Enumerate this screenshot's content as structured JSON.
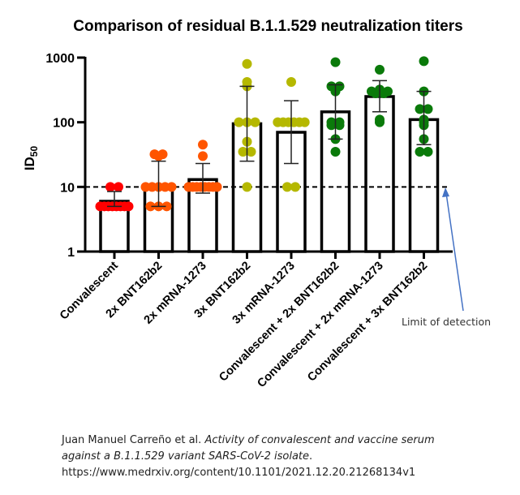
{
  "chart_data": {
    "type": "bar",
    "title": "Comparison of residual B.1.1.529 neutralization titers",
    "xlabel": "",
    "ylabel": "ID",
    "ylabel_subscript": "50",
    "yscale": "log",
    "ylim": [
      1,
      1000
    ],
    "yticks": [
      {
        "value": 1,
        "label": "1"
      },
      {
        "value": 10,
        "label": "10"
      },
      {
        "value": 100,
        "label": "100"
      },
      {
        "value": 1000,
        "label": "1000"
      }
    ],
    "grid": false,
    "reference_line": {
      "value": 10,
      "style": "dashed",
      "label": "Limit of detection"
    },
    "categories": [
      "Convalescent",
      "2x BNT162b2",
      "2x mRNA-1273",
      "3x BNT162b2",
      "3x mRNA-1273",
      "Convalescent + 2x BNT162b2",
      "Convalescent + 2x mRNA-1273",
      "Convalescent + 3x BNT162b2"
    ],
    "colors": [
      "#ff0000",
      "#ff5500",
      "#ff5500",
      "#b5b800",
      "#b5b800",
      "#0a7a0a",
      "#0a7a0a",
      "#0a7a0a"
    ],
    "values": [
      6,
      10.5,
      13,
      95,
      70,
      145,
      250,
      110
    ],
    "error_bars": [
      {
        "low": 5,
        "high": 8.5
      },
      {
        "low": 5,
        "high": 25
      },
      {
        "low": 8,
        "high": 23
      },
      {
        "low": 25,
        "high": 360
      },
      {
        "low": 23,
        "high": 215
      },
      {
        "low": 55,
        "high": 380
      },
      {
        "low": 145,
        "high": 440
      },
      {
        "low": 45,
        "high": 300
      }
    ],
    "points": [
      [
        5,
        5,
        5,
        5,
        5,
        5,
        5,
        5,
        10,
        10
      ],
      [
        32,
        32,
        30,
        10,
        10,
        10,
        10,
        10,
        5,
        5,
        5
      ],
      [
        45,
        30,
        10,
        10,
        10,
        10,
        10,
        10,
        10,
        10
      ],
      [
        800,
        420,
        360,
        100,
        100,
        100,
        50,
        35,
        35,
        10
      ],
      [
        420,
        100,
        100,
        100,
        100,
        100,
        100,
        10,
        10
      ],
      [
        850,
        360,
        360,
        300,
        100,
        100,
        90,
        90,
        55,
        35
      ],
      [
        650,
        320,
        300,
        300,
        280,
        300,
        280,
        110,
        100
      ],
      [
        880,
        300,
        160,
        160,
        110,
        100,
        90,
        55,
        35,
        35
      ]
    ]
  },
  "annotation": {
    "label": "Limit of detection",
    "arrow_color": "#4472c4"
  },
  "citation": {
    "authors": "Juan Manuel Carreño et al. ",
    "title_line1": "Activity of convalescent and vaccine serum",
    "title_line2": "against a B.1.1.529 variant SARS-CoV-2 isolate",
    "title_end": ".",
    "url": "https://www.medrxiv.org/content/10.1101/2021.12.20.21268134v1"
  }
}
